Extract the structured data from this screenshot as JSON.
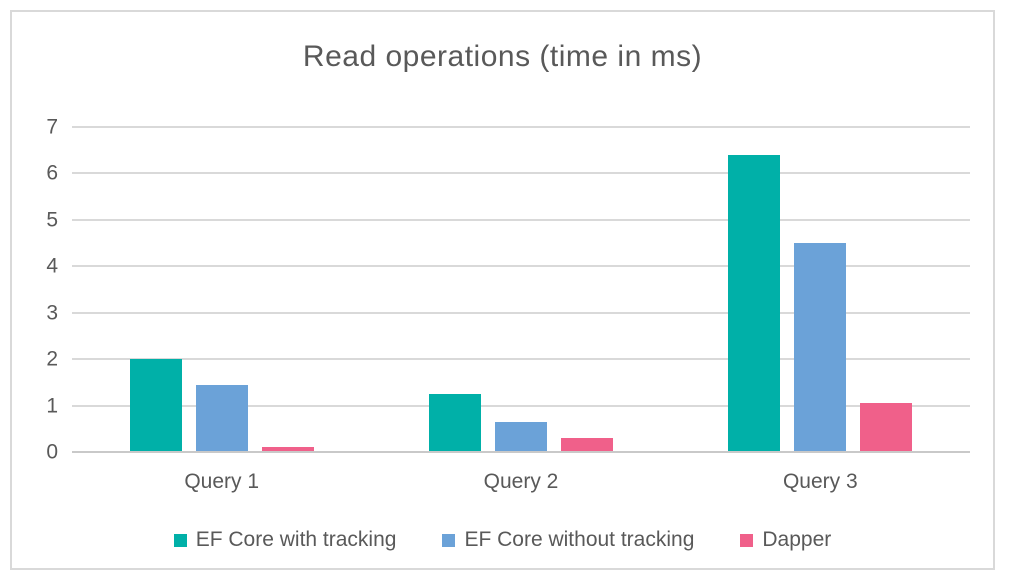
{
  "chart_data": {
    "type": "bar",
    "title": "Read operations (time in ms)",
    "categories": [
      "Query 1",
      "Query 2",
      "Query 3"
    ],
    "series": [
      {
        "name": "EF Core with tracking",
        "color": "#00B0A8",
        "values": [
          2.0,
          1.25,
          6.4
        ]
      },
      {
        "name": "EF Core without tracking",
        "color": "#6BA2D8",
        "values": [
          1.45,
          0.65,
          4.5
        ]
      },
      {
        "name": "Dapper",
        "color": "#F0608A",
        "values": [
          0.1,
          0.3,
          1.05
        ]
      }
    ],
    "xlabel": "",
    "ylabel": "",
    "ylim": [
      0,
      7
    ],
    "yticks": [
      0,
      1,
      2,
      3,
      4,
      5,
      6,
      7
    ],
    "grid": "horizontal",
    "legend_position": "bottom"
  },
  "colors": {
    "text": "#595959",
    "gridline": "#D9D9D9",
    "axis_line": "#C9C9C9",
    "frame_border": "#D9D9D9",
    "background": "#ffffff"
  }
}
